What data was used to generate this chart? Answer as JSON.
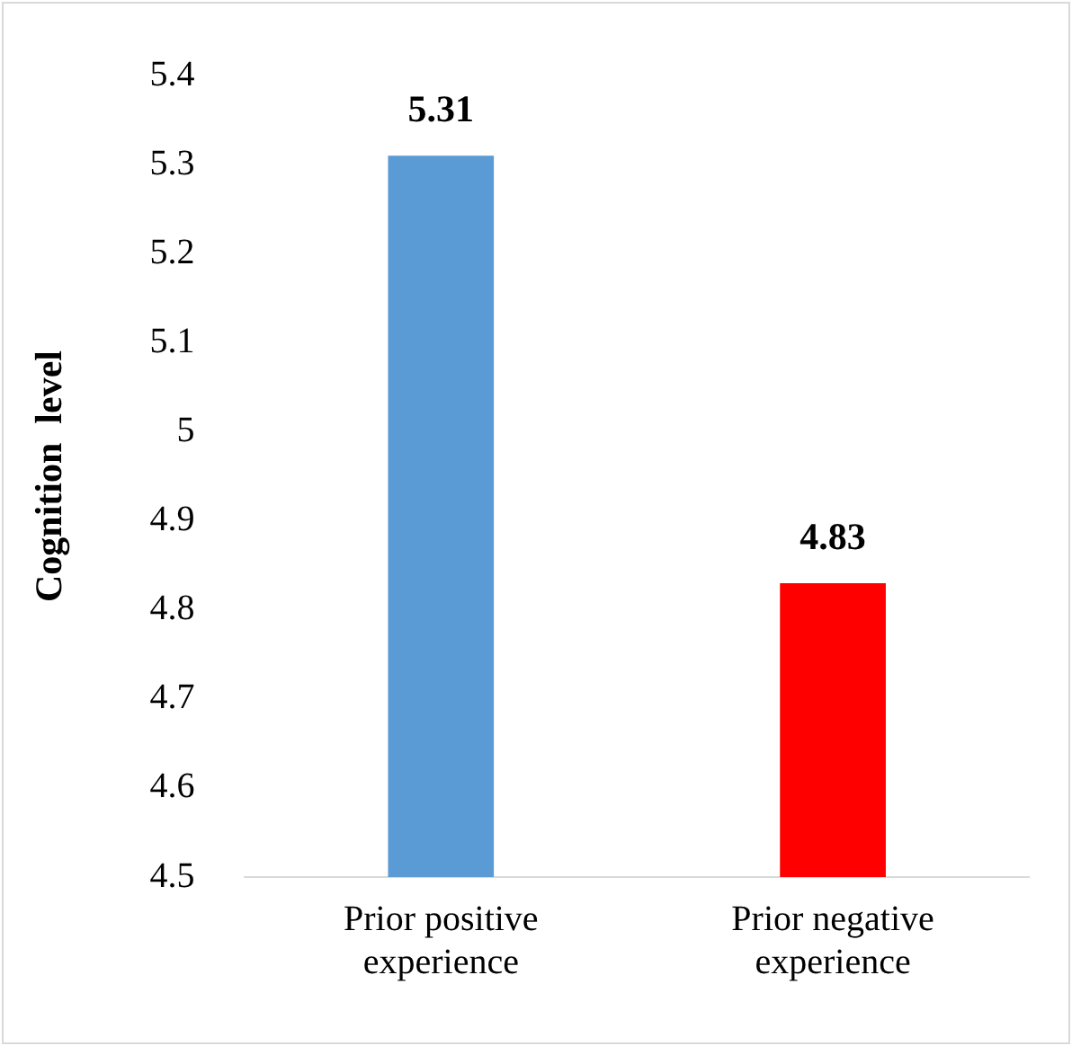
{
  "chart_data": {
    "type": "bar",
    "ylabel": "Cognition  level",
    "categories": [
      "Prior positive experience",
      "Prior negative experience"
    ],
    "values": [
      5.31,
      4.83
    ],
    "colors": [
      "#5b9bd5",
      "#ff0000"
    ],
    "ylim": [
      4.5,
      5.4
    ],
    "yticks": [
      4.5,
      4.6,
      4.7,
      4.8,
      4.9,
      {
        "value": 5,
        "label": "5"
      },
      5.1,
      5.2,
      5.3,
      5.4
    ],
    "grid": false,
    "legend": false,
    "data_labels": true
  }
}
